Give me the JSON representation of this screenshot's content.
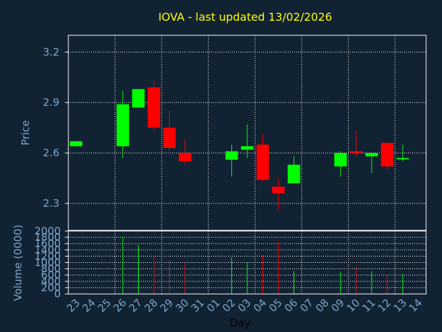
{
  "colors": {
    "background": "#112233",
    "axis_text": "#7fa6c7",
    "title": "#ffff00",
    "up": "#00ff00",
    "down": "#ff0000",
    "frame": "#ffffff",
    "xlabel": "#000000"
  },
  "chart_data": [
    {
      "type": "candlestick",
      "title": "IOVA - last updated 13/02/2026",
      "ylabel": "Price",
      "ylim": [
        2.14,
        3.3
      ],
      "yticks": [
        "2.3",
        "2.6",
        "2.9",
        "3.2"
      ],
      "x": [
        "23",
        "24",
        "25",
        "26",
        "27",
        "28",
        "29",
        "30",
        "31",
        "01",
        "02",
        "03",
        "04",
        "05",
        "06",
        "07",
        "08",
        "09",
        "10",
        "11",
        "12",
        "13",
        "14"
      ],
      "candles": [
        {
          "day": "23",
          "open": 2.64,
          "close": 2.67,
          "high": 2.67,
          "low": 2.64
        },
        {
          "day": "26",
          "open": 2.64,
          "close": 2.89,
          "high": 2.97,
          "low": 2.57
        },
        {
          "day": "27",
          "open": 2.87,
          "close": 2.98,
          "high": 2.98,
          "low": 2.87
        },
        {
          "day": "28",
          "open": 2.99,
          "close": 2.75,
          "high": 3.03,
          "low": 2.73
        },
        {
          "day": "29",
          "open": 2.75,
          "close": 2.63,
          "high": 2.85,
          "low": 2.62
        },
        {
          "day": "30",
          "open": 2.6,
          "close": 2.55,
          "high": 2.68,
          "low": 2.53
        },
        {
          "day": "02",
          "open": 2.56,
          "close": 2.61,
          "high": 2.65,
          "low": 2.46
        },
        {
          "day": "03",
          "open": 2.62,
          "close": 2.64,
          "high": 2.77,
          "low": 2.57
        },
        {
          "day": "04",
          "open": 2.65,
          "close": 2.44,
          "high": 2.71,
          "low": 2.43
        },
        {
          "day": "05",
          "open": 2.4,
          "close": 2.36,
          "high": 2.45,
          "low": 2.26
        },
        {
          "day": "06",
          "open": 2.42,
          "close": 2.53,
          "high": 2.58,
          "low": 2.42
        },
        {
          "day": "09",
          "open": 2.52,
          "close": 2.6,
          "high": 2.61,
          "low": 2.46
        },
        {
          "day": "10",
          "open": 2.61,
          "close": 2.6,
          "high": 2.73,
          "low": 2.58
        },
        {
          "day": "11",
          "open": 2.58,
          "close": 2.6,
          "high": 2.6,
          "low": 2.48
        },
        {
          "day": "12",
          "open": 2.66,
          "close": 2.52,
          "high": 2.66,
          "low": 2.5
        },
        {
          "day": "13",
          "open": 2.57,
          "close": 2.57,
          "high": 2.65,
          "low": 2.55
        }
      ]
    },
    {
      "type": "bar",
      "ylabel": "Volume (0000)",
      "xlabel": "Day",
      "ylim": [
        0,
        2000
      ],
      "yticks": [
        "0",
        "200",
        "400",
        "600",
        "800",
        "1000",
        "1200",
        "1400",
        "1600",
        "1800",
        "2000"
      ],
      "x": [
        "23",
        "24",
        "25",
        "26",
        "27",
        "28",
        "29",
        "30",
        "31",
        "01",
        "02",
        "03",
        "04",
        "05",
        "06",
        "07",
        "08",
        "09",
        "10",
        "11",
        "12",
        "13",
        "14"
      ],
      "bars": [
        {
          "day": "26",
          "value": 1830,
          "direction": "up"
        },
        {
          "day": "27",
          "value": 1560,
          "direction": "up"
        },
        {
          "day": "28",
          "value": 1180,
          "direction": "down"
        },
        {
          "day": "29",
          "value": 1070,
          "direction": "down"
        },
        {
          "day": "30",
          "value": 970,
          "direction": "down"
        },
        {
          "day": "02",
          "value": 1160,
          "direction": "up"
        },
        {
          "day": "03",
          "value": 1020,
          "direction": "up"
        },
        {
          "day": "04",
          "value": 1230,
          "direction": "down"
        },
        {
          "day": "05",
          "value": 1650,
          "direction": "down"
        },
        {
          "day": "06",
          "value": 720,
          "direction": "up"
        },
        {
          "day": "09",
          "value": 700,
          "direction": "up"
        },
        {
          "day": "10",
          "value": 860,
          "direction": "down"
        },
        {
          "day": "11",
          "value": 720,
          "direction": "up"
        },
        {
          "day": "12",
          "value": 580,
          "direction": "down"
        },
        {
          "day": "13",
          "value": 620,
          "direction": "up"
        }
      ]
    }
  ]
}
